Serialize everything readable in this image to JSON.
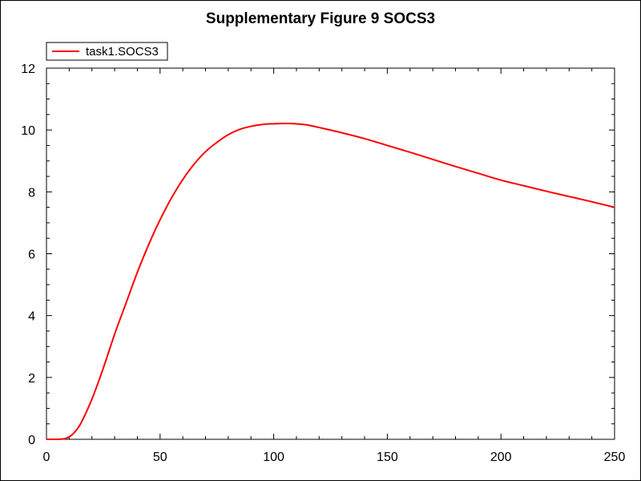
{
  "chart_data": {
    "type": "line",
    "title": "Supplementary Figure 9 SOCS3",
    "xlabel": "",
    "ylabel": "",
    "xlim": [
      0,
      250
    ],
    "ylim": [
      0,
      12
    ],
    "x_ticks": [
      0,
      50,
      100,
      150,
      200,
      250
    ],
    "y_ticks": [
      0,
      2,
      4,
      6,
      8,
      10,
      12
    ],
    "grid": false,
    "legend_position": "top-left",
    "series": [
      {
        "name": "task1.SOCS3",
        "color": "#ff0000",
        "x": [
          0,
          5,
          8,
          10,
          12,
          15,
          20,
          25,
          30,
          35,
          40,
          45,
          50,
          55,
          60,
          65,
          70,
          75,
          80,
          85,
          90,
          95,
          100,
          105,
          110,
          115,
          120,
          130,
          140,
          150,
          160,
          170,
          180,
          190,
          200,
          210,
          220,
          230,
          240,
          250
        ],
        "y": [
          0,
          0,
          0.02,
          0.08,
          0.2,
          0.5,
          1.3,
          2.3,
          3.4,
          4.4,
          5.4,
          6.3,
          7.1,
          7.8,
          8.4,
          8.9,
          9.3,
          9.6,
          9.85,
          10.02,
          10.12,
          10.18,
          10.2,
          10.21,
          10.2,
          10.16,
          10.08,
          9.91,
          9.72,
          9.5,
          9.28,
          9.05,
          8.82,
          8.6,
          8.38,
          8.2,
          8.02,
          7.85,
          7.68,
          7.5
        ]
      }
    ]
  }
}
